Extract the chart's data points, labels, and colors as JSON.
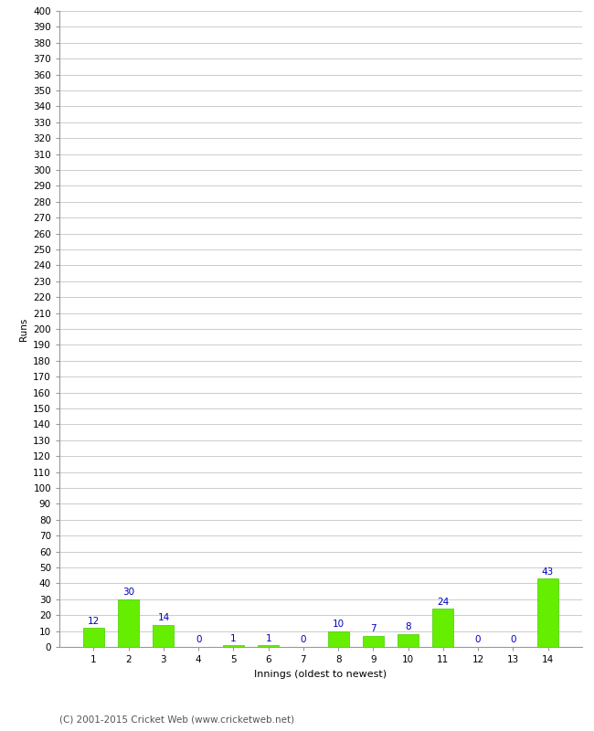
{
  "xlabel": "Innings (oldest to newest)",
  "ylabel": "Runs",
  "categories": [
    "1",
    "2",
    "3",
    "4",
    "5",
    "6",
    "7",
    "8",
    "9",
    "10",
    "11",
    "12",
    "13",
    "14"
  ],
  "values": [
    12,
    30,
    14,
    0,
    1,
    1,
    0,
    10,
    7,
    8,
    24,
    0,
    0,
    43
  ],
  "bar_color": "#66ee00",
  "bar_edge_color": "#44cc00",
  "label_color": "#0000bb",
  "label_fontsize": 7.5,
  "ylabel_fontsize": 7.5,
  "xlabel_fontsize": 8,
  "tick_fontsize": 7.5,
  "ytick_step": 10,
  "ylim": [
    0,
    400
  ],
  "grid_color": "#cccccc",
  "background_color": "#ffffff",
  "footer_text": "(C) 2001-2015 Cricket Web (www.cricketweb.net)",
  "footer_fontsize": 7.5,
  "footer_color": "#555555"
}
